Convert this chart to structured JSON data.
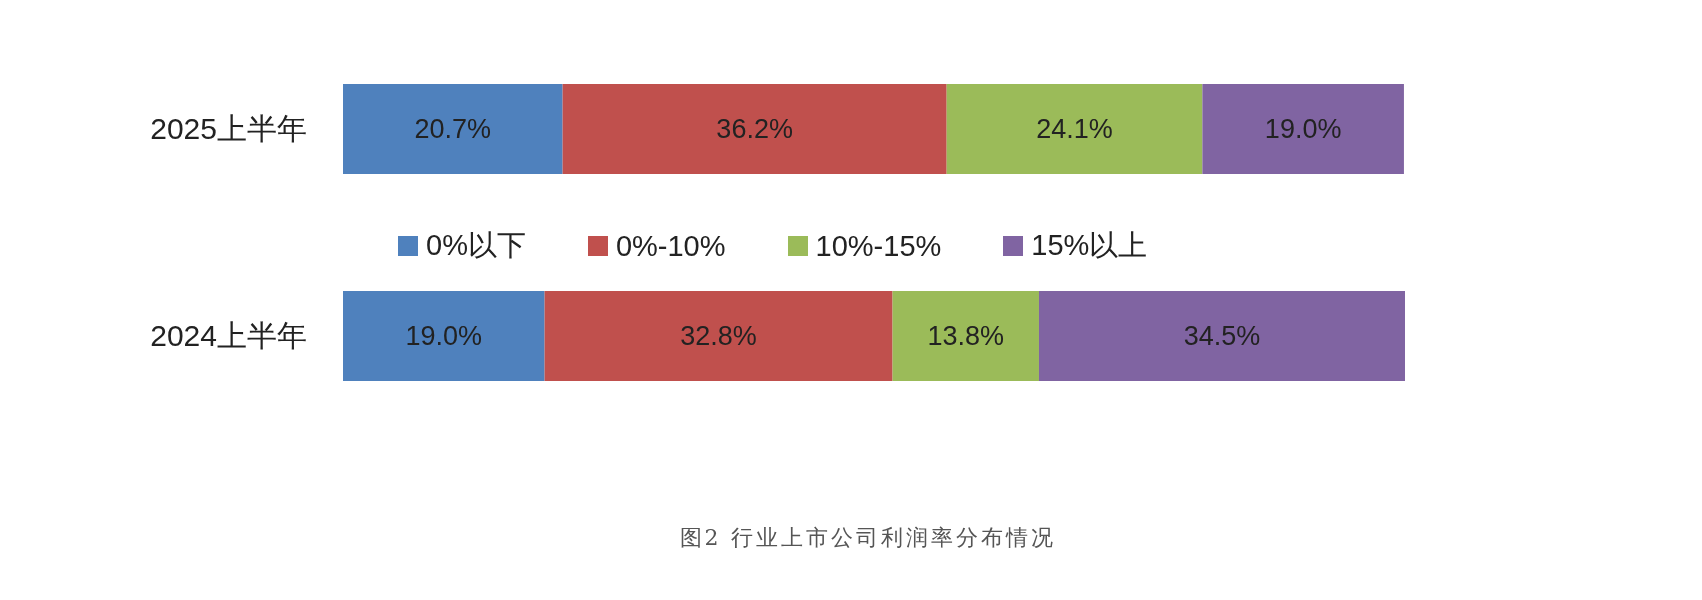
{
  "chart_data": {
    "type": "bar",
    "orientation": "horizontal",
    "stacked": true,
    "legend": "center",
    "categories": [
      "2025上半年",
      "2024上半年"
    ],
    "series": [
      {
        "name": "0%以下",
        "color": "#4f81bd",
        "values": [
          20.7,
          19.0
        ],
        "value_labels": [
          "20.7%",
          "19.0%"
        ]
      },
      {
        "name": "0%-10%",
        "color": "#c0504d",
        "values": [
          36.2,
          32.8
        ],
        "value_labels": [
          "36.2%",
          "32.8%"
        ]
      },
      {
        "name": "10%-15%",
        "color": "#9bbb59",
        "values": [
          24.1,
          13.8
        ],
        "value_labels": [
          "24.1%",
          "13.8%"
        ]
      },
      {
        "name": "15%以上",
        "color": "#8064a2",
        "values": [
          19.0,
          34.5
        ],
        "value_labels": [
          "19.0%",
          "34.5%"
        ]
      }
    ],
    "annotations": [
      "图2 行业上市公司利润率分布情况"
    ]
  }
}
